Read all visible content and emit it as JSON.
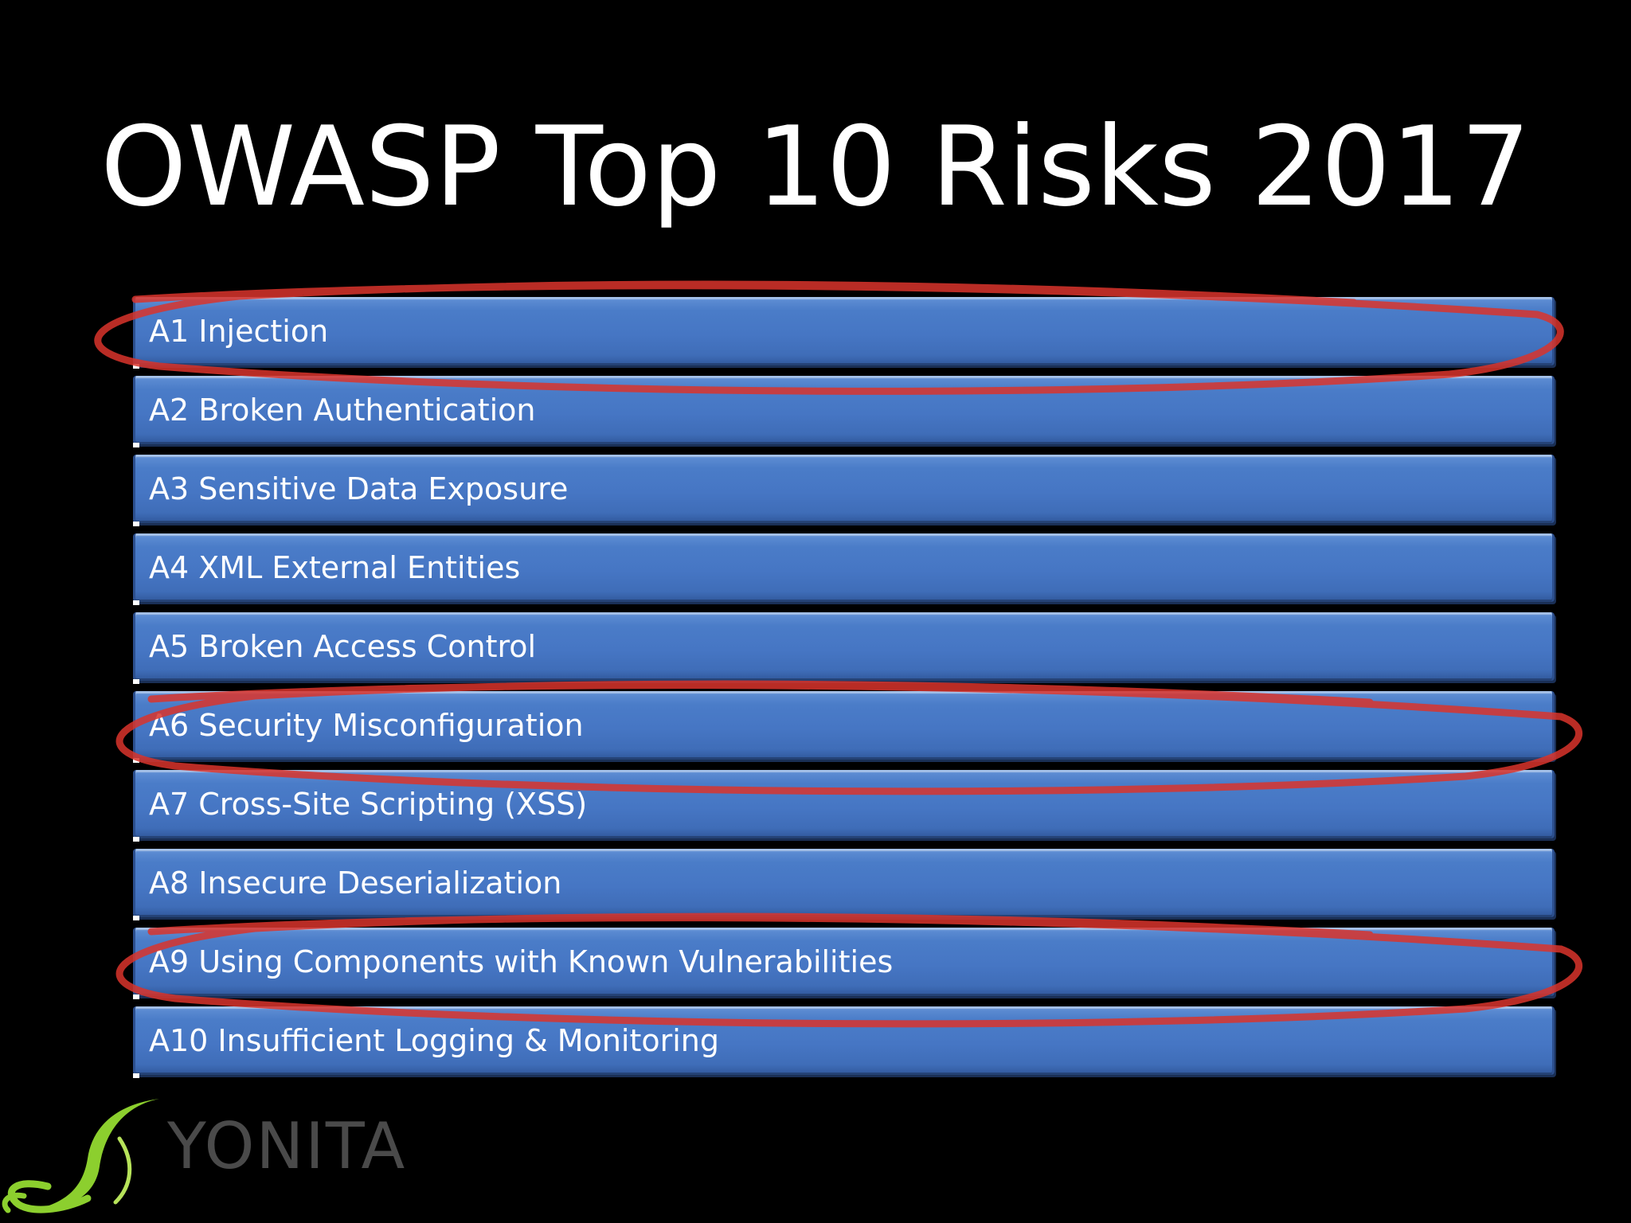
{
  "slide": {
    "title": "OWASP Top 10 Risks 2017",
    "risks": [
      {
        "label": "A1 Injection",
        "circled": true
      },
      {
        "label": "A2 Broken Authentication",
        "circled": false
      },
      {
        "label": "A3 Sensitive Data Exposure",
        "circled": false
      },
      {
        "label": "A4 XML External Entities",
        "circled": false
      },
      {
        "label": "A5 Broken Access Control",
        "circled": false
      },
      {
        "label": "A6 Security Misconfiguration",
        "circled": true
      },
      {
        "label": "A7 Cross-Site Scripting (XSS)",
        "circled": false
      },
      {
        "label": "A8 Insecure Deserialization",
        "circled": false
      },
      {
        "label": "A9 Using Components with Known Vulnerabilities",
        "circled": true
      },
      {
        "label": "A10 Insufficient Logging & Monitoring",
        "circled": false
      }
    ],
    "colors": {
      "background": "#000000",
      "bar": "#4676c4",
      "highlight_circle": "#d9342b",
      "logo_green": "#8ccf2e"
    }
  },
  "logo": {
    "text": "YONITA",
    "icon": "leaf-swirl-icon"
  }
}
